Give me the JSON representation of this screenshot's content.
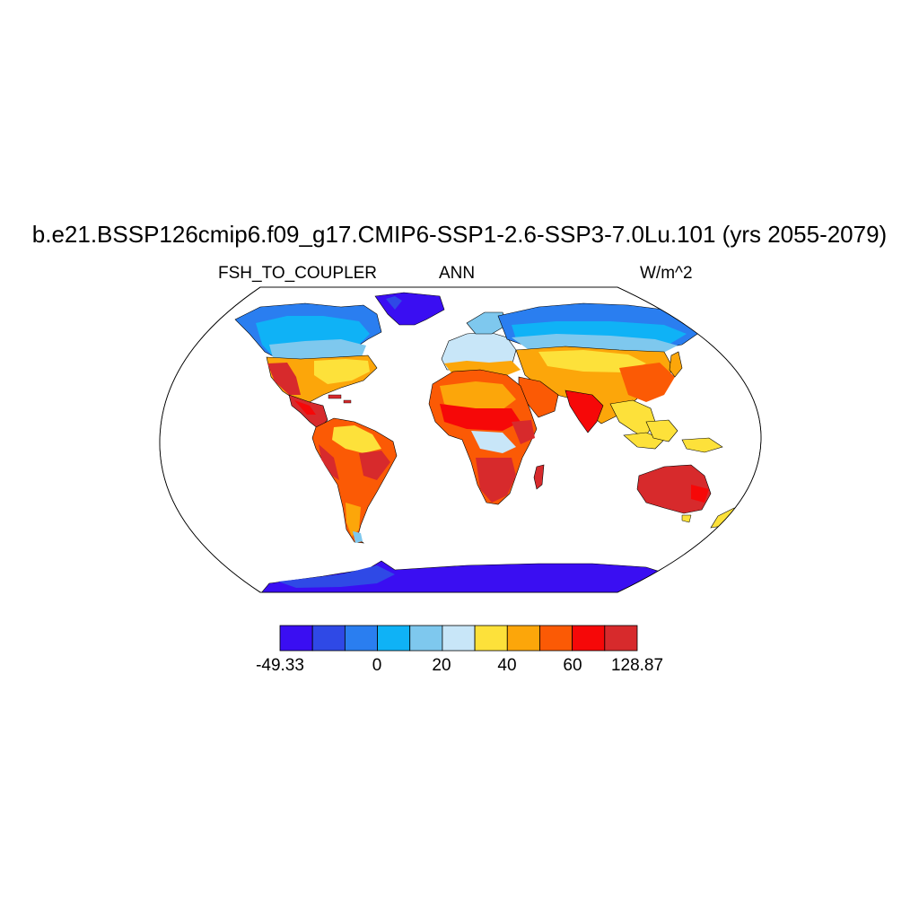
{
  "title": "b.e21.BSSP126cmip6.f09_g17.CMIP6-SSP1-2.6-SSP3-7.0Lu.101 (yrs 2055-2079)",
  "subtitles": {
    "left": "FSH_TO_COUPLER",
    "center": "ANN",
    "right": "W/m^2"
  },
  "colorbar": {
    "colors": [
      "#3a0ef2",
      "#2f49e6",
      "#2a7ef0",
      "#0fb2f6",
      "#7ec8ee",
      "#c8e6f8",
      "#fde13a",
      "#fca60a",
      "#fb5a05",
      "#f60808",
      "#d72a2c"
    ],
    "tick_labels": [
      "-49.33",
      "0",
      "20",
      "40",
      "60",
      "128.87"
    ]
  },
  "map_colors": {
    "ocean": "#ffffff",
    "outline": "#000000"
  }
}
